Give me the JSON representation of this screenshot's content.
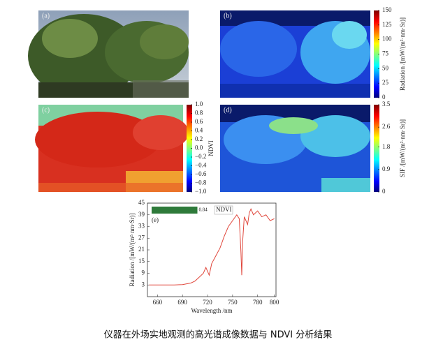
{
  "figure": {
    "caption": "仪器在外场实地观测的高光谱成像数据与 NDVI 分析结果",
    "panels": [
      {
        "label": "(a)"
      },
      {
        "label": "(b)",
        "colorbar": {
          "label": "Radiation /[mW/(m²·nm·Sr)]",
          "lim": [
            0,
            150
          ],
          "ticks": [
            0,
            25,
            50,
            75,
            100,
            125,
            150
          ]
        }
      },
      {
        "label": "(c)",
        "colorbar": {
          "label": "NDVI",
          "lim": [
            -1,
            1
          ],
          "ticks": [
            {
              "value": -1,
              "label": "−1.0"
            },
            {
              "value": -0.8,
              "label": "−0.8"
            },
            {
              "value": -0.6,
              "label": "−0.6"
            },
            {
              "value": -0.4,
              "label": "−0.4"
            },
            {
              "value": -0.2,
              "label": "−0.2"
            },
            {
              "value": 0,
              "label": "0.0"
            },
            0.2,
            0.4,
            0.6,
            0.8,
            {
              "value": 1,
              "label": "1.0"
            }
          ]
        }
      },
      {
        "label": "(d)",
        "colorbar": {
          "label": "SIF /[mW/(m²·nm·Sr)]",
          "lim": [
            0,
            3.5
          ],
          "ticks": [
            0,
            0.9,
            1.8,
            2.6,
            3.5
          ]
        }
      }
    ]
  },
  "chart_data": {
    "type": "line",
    "panel_label": "(e)",
    "xlabel": "Wavelength /nm",
    "ylabel": "Radiation /[mW/(m²·nm·Sr)]",
    "color": "#e0473c",
    "x": [
      650,
      660,
      670,
      680,
      690,
      700,
      705,
      710,
      715,
      718,
      720,
      722,
      725,
      730,
      735,
      740,
      745,
      750,
      755,
      758,
      760,
      761,
      762,
      764,
      766,
      768,
      770,
      772,
      775,
      780,
      785,
      790,
      795,
      800
    ],
    "values": [
      3,
      3,
      3,
      3,
      3.2,
      4,
      5,
      7,
      9,
      12,
      10,
      8,
      14,
      18,
      22,
      28,
      33,
      36,
      39,
      37,
      20,
      8,
      25,
      38,
      36,
      34,
      40,
      42,
      39,
      41,
      38,
      39,
      36,
      37
    ],
    "xlim": [
      648,
      802
    ],
    "ylim": [
      -3,
      45
    ],
    "xticks": [
      660,
      690,
      720,
      750,
      780,
      800
    ],
    "yticks": [
      3,
      9,
      15,
      21,
      27,
      33,
      39,
      45
    ],
    "ndvi": {
      "value": 0.84,
      "value_label": "0.84",
      "label": "NDVI"
    }
  }
}
